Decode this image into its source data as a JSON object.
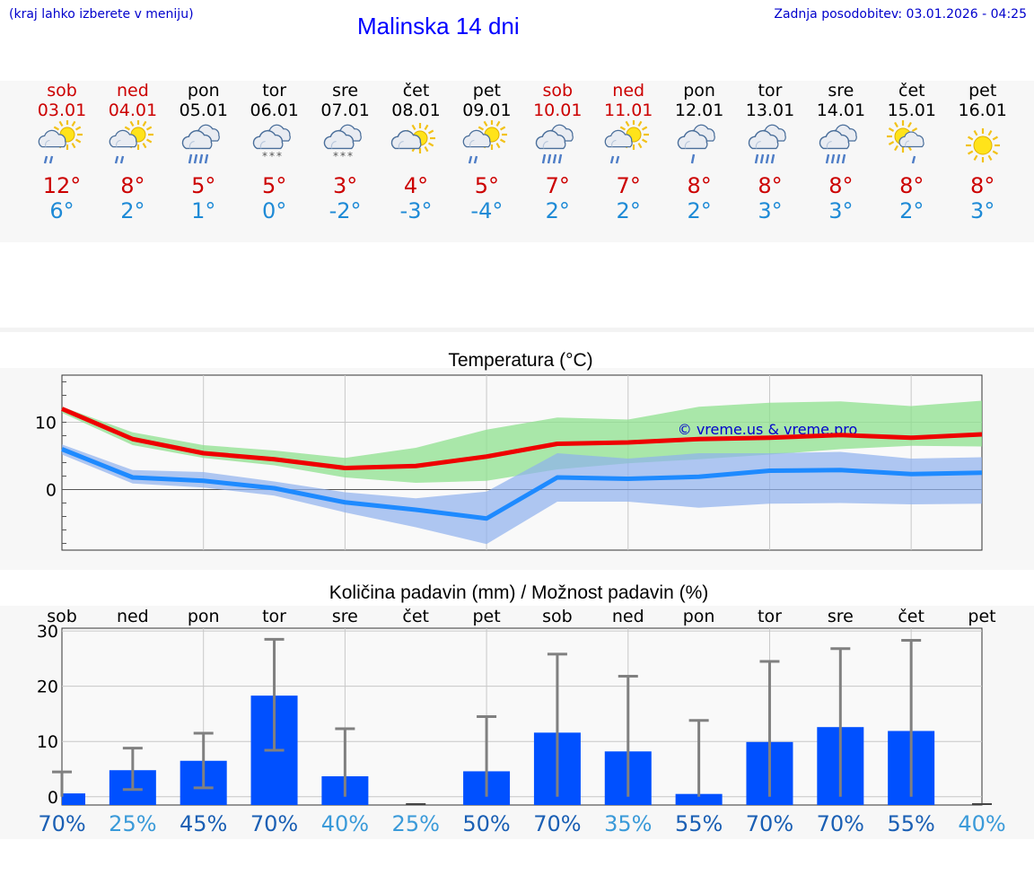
{
  "header": {
    "left_note": "(kraj lahko izberete v meniju)",
    "title": "Malinska 14 dni",
    "updated": "Zadnja posodobitev: 03.01.2026 - 04:25"
  },
  "colors": {
    "weekend": "#cc0000",
    "weekday": "#000000",
    "max_line": "#ee0000",
    "min_line": "#1e8aff",
    "max_band": "#8ee08e",
    "min_band": "#8fb0ee",
    "bar": "#0050ff",
    "errbar": "#808080",
    "pct_strong": "#1a5fb4",
    "pct_light": "#3a9ad9"
  },
  "days": [
    {
      "name": "sob",
      "date": "03.01",
      "weekend": true,
      "icon": "sun-cloud-rain-icon",
      "max": "12°",
      "min": "6°"
    },
    {
      "name": "ned",
      "date": "04.01",
      "weekend": true,
      "icon": "sun-cloud-rain-icon",
      "max": "8°",
      "min": "2°"
    },
    {
      "name": "pon",
      "date": "05.01",
      "weekend": false,
      "icon": "cloud-rain-icon",
      "max": "5°",
      "min": "1°"
    },
    {
      "name": "tor",
      "date": "06.01",
      "weekend": false,
      "icon": "cloud-snow-icon",
      "max": "5°",
      "min": "0°"
    },
    {
      "name": "sre",
      "date": "07.01",
      "weekend": false,
      "icon": "cloud-snow-icon",
      "max": "3°",
      "min": "-2°"
    },
    {
      "name": "čet",
      "date": "08.01",
      "weekend": false,
      "icon": "sun-cloud-icon",
      "max": "4°",
      "min": "-3°"
    },
    {
      "name": "pet",
      "date": "09.01",
      "weekend": false,
      "icon": "sun-cloud-rain-icon",
      "max": "5°",
      "min": "-4°"
    },
    {
      "name": "sob",
      "date": "10.01",
      "weekend": true,
      "icon": "cloud-rain-icon",
      "max": "7°",
      "min": "2°"
    },
    {
      "name": "ned",
      "date": "11.01",
      "weekend": true,
      "icon": "sun-cloud-rain-icon",
      "max": "7°",
      "min": "2°"
    },
    {
      "name": "pon",
      "date": "12.01",
      "weekend": false,
      "icon": "cloud-light-rain-icon",
      "max": "8°",
      "min": "2°"
    },
    {
      "name": "tor",
      "date": "13.01",
      "weekend": false,
      "icon": "cloud-rain-icon",
      "max": "8°",
      "min": "3°"
    },
    {
      "name": "sre",
      "date": "14.01",
      "weekend": false,
      "icon": "cloud-rain-icon",
      "max": "8°",
      "min": "3°"
    },
    {
      "name": "čet",
      "date": "15.01",
      "weekend": false,
      "icon": "sun-cloud-light-rain-icon",
      "max": "8°",
      "min": "2°"
    },
    {
      "name": "pet",
      "date": "16.01",
      "weekend": false,
      "icon": "sun-icon",
      "max": "8°",
      "min": "3°"
    }
  ],
  "chart_data": [
    {
      "type": "line",
      "title": "Temperatura (°C)",
      "watermark": "© vreme.us & vreme.pro",
      "ylim": [
        -9,
        17
      ],
      "yticks": [
        0,
        10
      ],
      "x": [
        0,
        1,
        2,
        3,
        4,
        5,
        6,
        7,
        8,
        9,
        10,
        11,
        12,
        13
      ],
      "series": [
        {
          "name": "max",
          "values": [
            12,
            7.5,
            5.4,
            4.5,
            3.2,
            3.5,
            4.9,
            6.8,
            7,
            7.5,
            7.7,
            8.1,
            7.7,
            8.2
          ]
        },
        {
          "name": "min",
          "values": [
            6,
            1.8,
            1.3,
            0.2,
            -1.9,
            -3,
            -4.3,
            1.8,
            1.6,
            1.9,
            2.8,
            2.9,
            2.3,
            2.5
          ]
        }
      ],
      "bands": [
        {
          "name": "max_range",
          "lower": [
            11.4,
            6.6,
            4.7,
            3.6,
            1.8,
            1.0,
            1.3,
            3.0,
            3.9,
            4.5,
            5.2,
            6.0,
            6.5,
            6.4
          ],
          "upper": [
            12.3,
            8.5,
            6.6,
            5.8,
            4.7,
            6.2,
            8.9,
            10.7,
            10.4,
            12.3,
            12.9,
            13.1,
            12.4,
            13.2
          ]
        },
        {
          "name": "min_range",
          "lower": [
            5.2,
            0.9,
            0.3,
            -0.9,
            -3.4,
            -5.6,
            -8.1,
            -1.8,
            -1.8,
            -2.7,
            -2.1,
            -2.0,
            -2.2,
            -2.1
          ]
        },
        {
          "name": "min_range_upper",
          "upper": [
            6.7,
            2.9,
            2.6,
            1.2,
            -0.4,
            -1.3,
            -0.3,
            5.4,
            4.6,
            5.4,
            5.4,
            5.6,
            4.6,
            4.8
          ]
        }
      ]
    },
    {
      "type": "bar",
      "title": "Količina padavin (mm) / Možnost padavin (%)",
      "categories": [
        "sob",
        "ned",
        "pon",
        "tor",
        "sre",
        "čet",
        "pet",
        "sob",
        "ned",
        "pon",
        "tor",
        "sre",
        "čet",
        "pet"
      ],
      "values": [
        0.6,
        4.8,
        6.5,
        18.3,
        3.7,
        0,
        4.6,
        11.6,
        8.2,
        0.5,
        9.9,
        12.6,
        11.9,
        0
      ],
      "err_low": [
        0,
        1.3,
        1.6,
        8.4,
        0,
        0,
        0,
        0,
        0,
        0,
        0,
        0,
        0,
        0
      ],
      "err_high": [
        4.5,
        8.8,
        11.5,
        28.5,
        12.3,
        0,
        14.5,
        25.8,
        21.8,
        13.8,
        24.5,
        26.8,
        28.3,
        0
      ],
      "ylim": [
        -1.5,
        30.5
      ],
      "yticks": [
        0,
        10,
        20,
        30
      ],
      "probability": [
        "70%",
        "25%",
        "45%",
        "70%",
        "40%",
        "25%",
        "50%",
        "70%",
        "35%",
        "55%",
        "70%",
        "70%",
        "55%",
        "40%"
      ]
    }
  ]
}
